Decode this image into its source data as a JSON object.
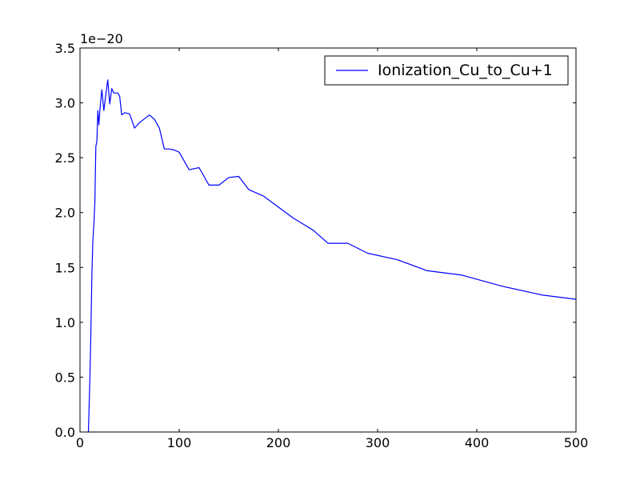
{
  "chart_data": {
    "type": "line",
    "title": "",
    "xlabel": "",
    "ylabel": "",
    "xlim": [
      0,
      500
    ],
    "ylim": [
      0,
      3.5
    ],
    "y_offset_label": "1e−20",
    "x_ticks": [
      0,
      100,
      200,
      300,
      400,
      500
    ],
    "x_tick_labels": [
      "0",
      "100",
      "200",
      "300",
      "400",
      "500"
    ],
    "y_ticks": [
      0,
      0.5,
      1.0,
      1.5,
      2.0,
      2.5,
      3.0,
      3.5
    ],
    "y_tick_labels": [
      "0.0",
      "0.5",
      "1.0",
      "1.5",
      "2.0",
      "2.5",
      "3.0",
      "3.5"
    ],
    "grid": false,
    "legend_position": "top-right",
    "colors": {
      "series": "#0000ff",
      "axes": "#000000",
      "background": "#ffffff"
    },
    "series": [
      {
        "name": "Ionization_Cu_to_Cu+1",
        "x": [
          7.7,
          8.5,
          10,
          11,
          12,
          13,
          14,
          15,
          16,
          17,
          18,
          19,
          20,
          22,
          24,
          26,
          28,
          30,
          32,
          34,
          36,
          38,
          40,
          42,
          45,
          50,
          55,
          60,
          70,
          75,
          80,
          85,
          90,
          95,
          100,
          110,
          120,
          130,
          140,
          150,
          160,
          170,
          185,
          200,
          215,
          235,
          250,
          270,
          290,
          320,
          350,
          385,
          425,
          465,
          500
        ],
        "y": [
          0.0,
          0.0,
          0.5,
          0.9,
          1.45,
          1.75,
          1.9,
          2.1,
          2.6,
          2.65,
          2.93,
          2.8,
          2.93,
          3.12,
          2.93,
          3.07,
          3.21,
          2.99,
          3.13,
          3.09,
          3.09,
          3.09,
          3.06,
          2.89,
          2.91,
          2.9,
          2.77,
          2.82,
          2.89,
          2.85,
          2.77,
          2.58,
          2.58,
          2.57,
          2.55,
          2.39,
          2.41,
          2.25,
          2.25,
          2.32,
          2.33,
          2.21,
          2.15,
          2.05,
          1.95,
          1.84,
          1.72,
          1.72,
          1.63,
          1.57,
          1.47,
          1.43,
          1.33,
          1.25,
          1.21
        ]
      }
    ]
  }
}
